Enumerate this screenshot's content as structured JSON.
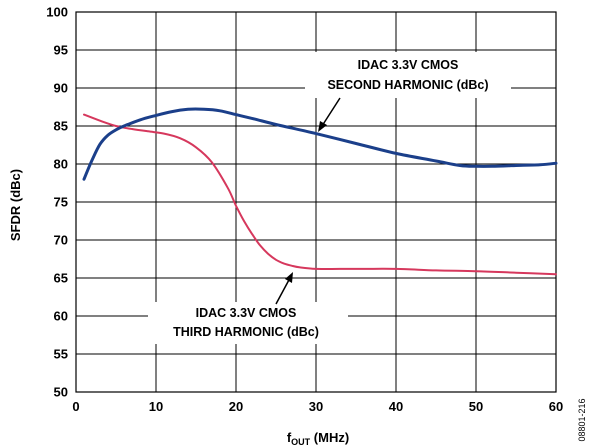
{
  "chart_data": {
    "type": "line",
    "title": "",
    "xlabel": "f",
    "xlabel_sub": "OUT",
    "xlabel_unit": " (MHz)",
    "ylabel": "SFDR (dBc)",
    "xlim": [
      0,
      60
    ],
    "ylim": [
      50,
      100
    ],
    "x_ticks": [
      0,
      10,
      20,
      30,
      40,
      50,
      60
    ],
    "y_ticks": [
      50,
      55,
      60,
      65,
      70,
      75,
      80,
      85,
      90,
      95,
      100
    ],
    "grid": true,
    "figure_id": "08801-216",
    "colors": {
      "second": "#1b3f8a",
      "third": "#d6385d"
    },
    "series": [
      {
        "name": "IDAC 3.3V CMOS SECOND HARMONIC (dBc)",
        "annotation_lines": [
          "IDAC 3.3V CMOS",
          "SECOND HARMONIC (dBc)"
        ],
        "x": [
          1,
          2,
          3,
          4,
          5,
          6,
          8,
          10,
          12,
          14,
          16,
          18,
          20,
          22,
          25,
          30,
          35,
          40,
          45,
          48,
          50,
          52,
          55,
          58,
          60
        ],
        "values": [
          78.0,
          80.5,
          82.6,
          83.8,
          84.5,
          85.0,
          85.8,
          86.4,
          86.9,
          87.2,
          87.2,
          87.0,
          86.5,
          86.0,
          85.2,
          84.0,
          82.7,
          81.4,
          80.4,
          79.8,
          79.7,
          79.7,
          79.8,
          79.9,
          80.1
        ]
      },
      {
        "name": "IDAC 3.3V CMOS THIRD HARMONIC (dBc)",
        "annotation_lines": [
          "IDAC 3.3V CMOS",
          "THIRD HARMONIC (dBc)"
        ],
        "x": [
          1,
          3,
          5,
          7,
          9,
          11,
          13,
          15,
          17,
          19,
          20,
          21,
          22,
          23,
          24,
          25,
          26,
          27,
          28,
          30,
          33,
          36,
          40,
          45,
          50,
          55,
          60
        ],
        "values": [
          86.5,
          85.7,
          85.0,
          84.6,
          84.3,
          84.0,
          83.4,
          82.2,
          80.2,
          76.8,
          74.5,
          72.5,
          70.8,
          69.3,
          68.2,
          67.4,
          66.9,
          66.6,
          66.4,
          66.2,
          66.2,
          66.2,
          66.2,
          66.0,
          65.9,
          65.7,
          65.5
        ]
      }
    ]
  }
}
